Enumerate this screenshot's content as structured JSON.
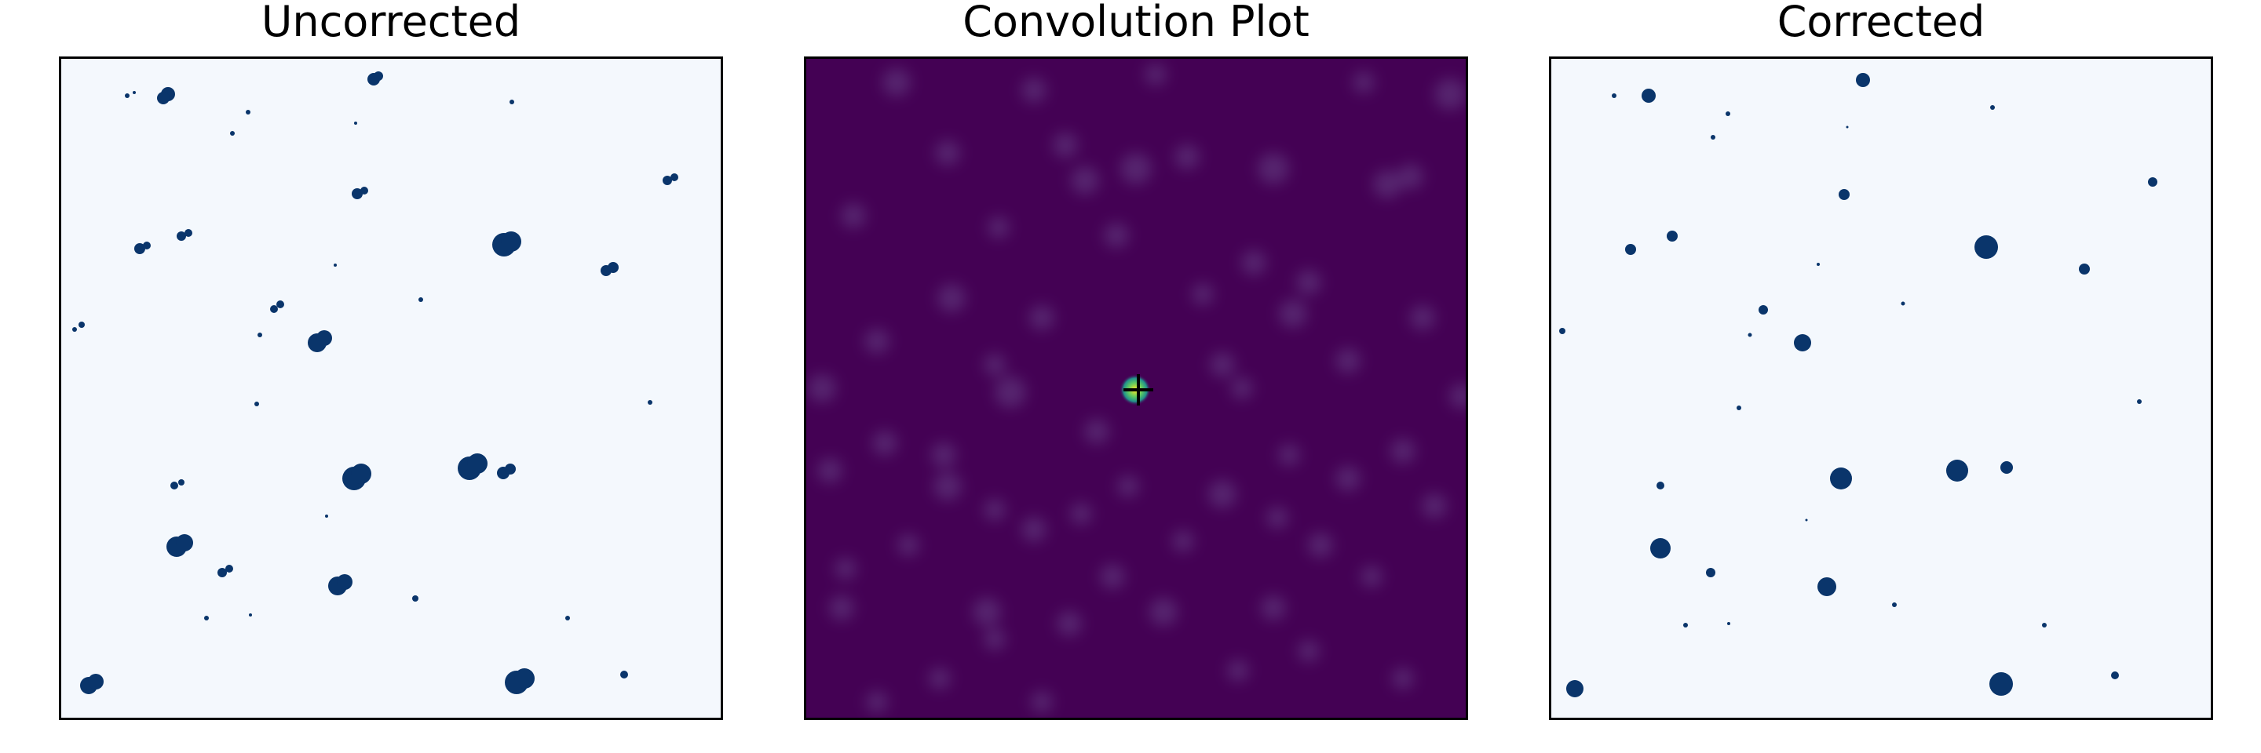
{
  "panels": [
    {
      "title": "Uncorrected"
    },
    {
      "title": "Convolution Plot"
    },
    {
      "title": "Corrected"
    }
  ],
  "colors": {
    "background_light": "#f4f8fd",
    "blob": "#0a356b",
    "convolution_background": "#440154",
    "convolution_spot": "#a6c6e8",
    "peak_inner": "#fde725",
    "peak_outer": "#21918c",
    "marker": "#000000"
  },
  "icons": {
    "peak_marker": "plus-marker"
  }
}
